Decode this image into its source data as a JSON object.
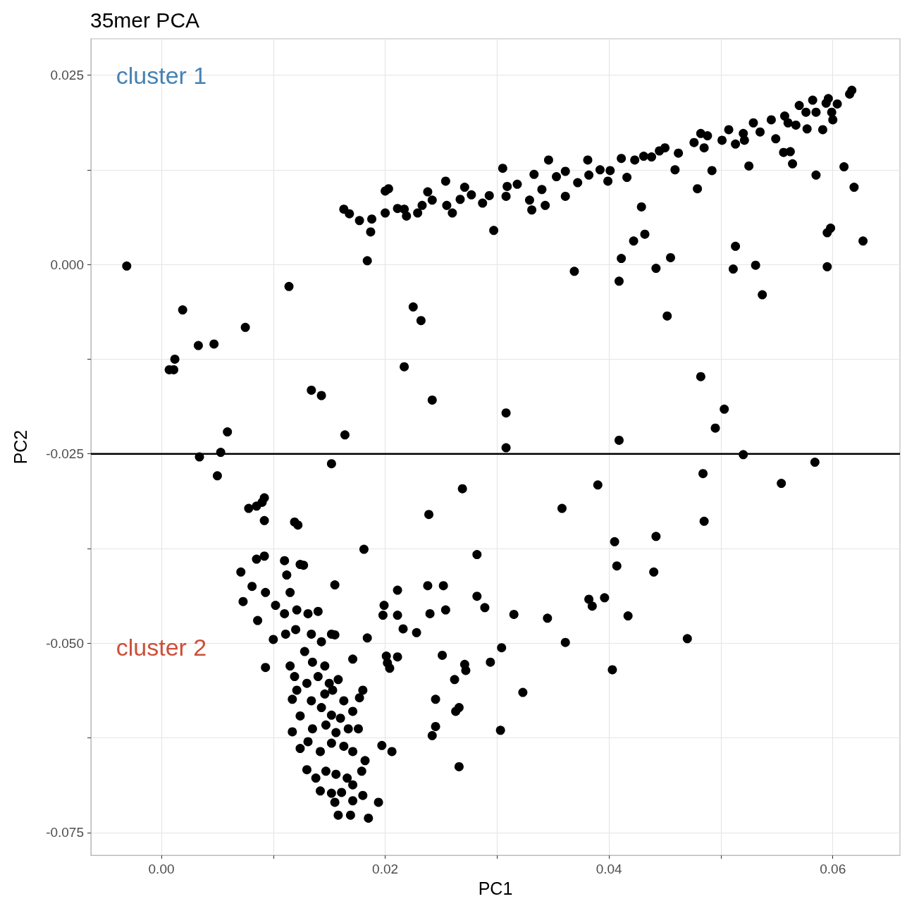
{
  "chart_data": {
    "type": "scatter",
    "title": "35mer PCA",
    "xlabel": "PC1",
    "ylabel": "PC2",
    "annotations": [
      "cluster 1",
      "cluster 2"
    ],
    "xlim": [
      -0.0063,
      0.066
    ],
    "ylim": [
      -0.078,
      0.0298
    ],
    "xticks": [
      {
        "value": 0,
        "label": "0.00"
      },
      {
        "value": 0.01,
        "label": null
      },
      0.02,
      {
        "value": 0.03,
        "label": null
      },
      0.04,
      {
        "value": 0.05,
        "label": null
      },
      0.06
    ],
    "yticks": [
      {
        "value": -0.075,
        "label": "-0.075"
      },
      {
        "value": -0.0625,
        "label": null
      },
      {
        "value": -0.05,
        "label": "-0.050"
      },
      {
        "value": -0.0375,
        "label": null
      },
      {
        "value": -0.025,
        "label": "-0.025"
      },
      {
        "value": -0.0125,
        "label": null
      },
      {
        "value": 0,
        "label": "0.000"
      },
      {
        "value": 0.0125,
        "label": null
      },
      {
        "value": 0.025,
        "label": "0.025"
      }
    ],
    "grid": true,
    "marker": "circle",
    "ref_lines": [
      {
        "axis": "y",
        "value": -0.025,
        "color": "#000000"
      }
    ],
    "series": [
      {
        "color": "#000000",
        "x": [
          -0.0031,
          0.0019,
          0.0012,
          0.0007,
          0.0011,
          0.0033,
          0.0047,
          0.0075,
          0.0114,
          0.0059,
          0.0053,
          0.0034,
          0.005,
          0.0134,
          0.0143,
          0.0164,
          0.0152,
          0.0184,
          0.0225,
          0.0232,
          0.0217,
          0.0242,
          0.0308,
          0.0308,
          0.0269,
          0.0239,
          0.0282,
          0.0358,
          0.039,
          0.0405,
          0.0407,
          0.0442,
          0.044,
          0.0485,
          0.0484,
          0.052,
          0.0554,
          0.0584,
          0.0495,
          0.0503,
          0.0482,
          0.0409,
          0.0452,
          0.0409,
          0.0411,
          0.0369,
          0.0422,
          0.0432,
          0.0429,
          0.0442,
          0.0455,
          0.0511,
          0.0513,
          0.0531,
          0.0537,
          0.0595,
          0.0595,
          0.0598,
          0.0627,
          0.0619,
          0.061,
          0.0585,
          0.0479,
          0.0492,
          0.0525,
          0.0564,
          0.0556,
          0.0562,
          0.0297,
          0.0343,
          0.0331,
          0.0163,
          0.0168,
          0.0177,
          0.0188,
          0.0187,
          0.02,
          0.02,
          0.0203,
          0.0211,
          0.0217,
          0.0219,
          0.0229,
          0.0233,
          0.0238,
          0.0242,
          0.0254,
          0.0255,
          0.026,
          0.0267,
          0.0271,
          0.0277,
          0.0287,
          0.0293,
          0.0305,
          0.0308,
          0.0309,
          0.0318,
          0.0329,
          0.0333,
          0.034,
          0.0346,
          0.0353,
          0.0361,
          0.0361,
          0.0372,
          0.0381,
          0.0382,
          0.0392,
          0.0399,
          0.0401,
          0.0411,
          0.0416,
          0.0423,
          0.0431,
          0.0438,
          0.045,
          0.0459,
          0.0462,
          0.0476,
          0.0485,
          0.0488,
          0.0501,
          0.0507,
          0.0513,
          0.052,
          0.0529,
          0.0535,
          0.0545,
          0.0549,
          0.0557,
          0.0567,
          0.057,
          0.0577,
          0.0582,
          0.0585,
          0.0591,
          0.0596,
          0.0599,
          0.06,
          0.0604,
          0.0615,
          0.0617,
          0.0594,
          0.0576,
          0.056,
          0.0521,
          0.0482,
          0.0445,
          0.0092,
          0.009,
          0.0078,
          0.0085,
          0.0092,
          0.0119,
          0.0122,
          0.0181,
          0.0085,
          0.0092,
          0.0071,
          0.0081,
          0.0093,
          0.0073,
          0.0086,
          0.0093,
          0.011,
          0.0112,
          0.0115,
          0.0124,
          0.0127,
          0.0102,
          0.011,
          0.0121,
          0.0131,
          0.014,
          0.01,
          0.0111,
          0.012,
          0.0134,
          0.0143,
          0.0128,
          0.0135,
          0.0146,
          0.0115,
          0.0119,
          0.013,
          0.014,
          0.015,
          0.0158,
          0.0121,
          0.0134,
          0.0146,
          0.0153,
          0.0163,
          0.0117,
          0.0143,
          0.0152,
          0.016,
          0.0171,
          0.0124,
          0.0135,
          0.0147,
          0.0156,
          0.0167,
          0.0176,
          0.0117,
          0.0131,
          0.0142,
          0.0152,
          0.0163,
          0.0171,
          0.0182,
          0.0124,
          0.013,
          0.0138,
          0.0147,
          0.0156,
          0.0166,
          0.0179,
          0.0142,
          0.0152,
          0.0161,
          0.0171,
          0.0155,
          0.0171,
          0.018,
          0.0194,
          0.0158,
          0.0169,
          0.0185,
          0.0155,
          0.0152,
          0.0171,
          0.0155,
          0.0184,
          0.018,
          0.0177,
          0.0199,
          0.0198,
          0.0211,
          0.0211,
          0.0216,
          0.0228,
          0.0201,
          0.0202,
          0.0204,
          0.0211,
          0.0197,
          0.0206,
          0.0238,
          0.0252,
          0.024,
          0.0254,
          0.0251,
          0.0271,
          0.0272,
          0.0262,
          0.0245,
          0.0245,
          0.0242,
          0.0266,
          0.0263,
          0.0266,
          0.0282,
          0.0289,
          0.0315,
          0.0304,
          0.0294,
          0.0323,
          0.0303,
          0.0345,
          0.0361,
          0.0382,
          0.0385,
          0.0396,
          0.0417,
          0.0403,
          0.047
        ],
        "values": [
          -0.0002,
          -0.006,
          -0.0125,
          -0.0139,
          -0.0139,
          -0.0107,
          -0.0105,
          -0.0083,
          -0.0029,
          -0.0221,
          -0.0248,
          -0.0254,
          -0.0279,
          -0.0166,
          -0.0173,
          -0.0225,
          -0.0263,
          0.0005,
          -0.0056,
          -0.0074,
          -0.0135,
          -0.0179,
          -0.0196,
          -0.0242,
          -0.0296,
          -0.033,
          -0.0383,
          -0.0322,
          -0.0291,
          -0.0366,
          -0.0398,
          -0.0359,
          -0.0406,
          -0.0339,
          -0.0276,
          -0.0251,
          -0.0289,
          -0.0261,
          -0.0216,
          -0.0191,
          -0.0148,
          -0.0232,
          -0.0068,
          -0.0022,
          0.0008,
          -0.0009,
          0.0031,
          0.004,
          0.0076,
          -0.0005,
          0.0009,
          -0.0006,
          0.0024,
          -0.0001,
          -0.004,
          -0.0003,
          0.0042,
          0.0048,
          0.0031,
          0.0102,
          0.0129,
          0.0118,
          0.01,
          0.0124,
          0.013,
          0.0133,
          0.0148,
          0.0149,
          0.0045,
          0.0078,
          0.0072,
          0.0073,
          0.0067,
          0.0058,
          0.006,
          0.0043,
          0.0068,
          0.0097,
          0.01,
          0.0074,
          0.0073,
          0.0064,
          0.0068,
          0.0078,
          0.0096,
          0.0085,
          0.011,
          0.0078,
          0.0068,
          0.0086,
          0.0102,
          0.0092,
          0.0081,
          0.0091,
          0.0127,
          0.009,
          0.0103,
          0.0106,
          0.0085,
          0.0119,
          0.0099,
          0.0138,
          0.0116,
          0.0123,
          0.009,
          0.0108,
          0.0138,
          0.0118,
          0.0125,
          0.011,
          0.0124,
          0.014,
          0.0115,
          0.0138,
          0.0143,
          0.0142,
          0.0154,
          0.0125,
          0.0147,
          0.0161,
          0.0154,
          0.017,
          0.0164,
          0.0178,
          0.0159,
          0.0173,
          0.0187,
          0.0175,
          0.0191,
          0.0166,
          0.0196,
          0.0184,
          0.021,
          0.0179,
          0.0217,
          0.0201,
          0.0178,
          0.0219,
          0.0201,
          0.0191,
          0.0212,
          0.0225,
          0.023,
          0.0213,
          0.0201,
          0.0187,
          0.0164,
          0.0173,
          0.015,
          -0.0308,
          -0.0314,
          -0.0322,
          -0.0319,
          -0.0338,
          -0.034,
          -0.0344,
          -0.0376,
          -0.0389,
          -0.0385,
          -0.0406,
          -0.0425,
          -0.0433,
          -0.0445,
          -0.047,
          -0.0532,
          -0.0391,
          -0.041,
          -0.0433,
          -0.0396,
          -0.0397,
          -0.045,
          -0.0461,
          -0.0456,
          -0.0461,
          -0.0458,
          -0.0495,
          -0.0488,
          -0.0482,
          -0.0488,
          -0.0498,
          -0.0511,
          -0.0525,
          -0.053,
          -0.053,
          -0.0544,
          -0.0553,
          -0.0544,
          -0.0553,
          -0.0548,
          -0.0562,
          -0.0576,
          -0.0567,
          -0.0562,
          -0.0576,
          -0.0574,
          -0.0585,
          -0.0595,
          -0.0599,
          -0.059,
          -0.0596,
          -0.0613,
          -0.0608,
          -0.0618,
          -0.0613,
          -0.0613,
          -0.0617,
          -0.063,
          -0.0643,
          -0.0632,
          -0.0636,
          -0.0643,
          -0.0655,
          -0.0639,
          -0.0667,
          -0.0678,
          -0.0669,
          -0.0673,
          -0.0678,
          -0.0669,
          -0.0695,
          -0.0698,
          -0.0697,
          -0.0687,
          -0.071,
          -0.0708,
          -0.0701,
          -0.071,
          -0.0727,
          -0.0727,
          -0.0731,
          -0.0489,
          -0.0488,
          -0.0521,
          -0.0423,
          -0.0493,
          -0.0562,
          -0.0572,
          -0.045,
          -0.0463,
          -0.043,
          -0.0463,
          -0.0481,
          -0.0486,
          -0.0517,
          -0.0526,
          -0.0533,
          -0.0518,
          -0.0635,
          -0.0643,
          -0.0424,
          -0.0424,
          -0.0461,
          -0.0456,
          -0.0516,
          -0.0528,
          -0.0536,
          -0.0548,
          -0.0574,
          -0.061,
          -0.0622,
          -0.0585,
          -0.059,
          -0.0663,
          -0.0438,
          -0.0453,
          -0.0462,
          -0.0506,
          -0.0525,
          -0.0565,
          -0.0615,
          -0.0467,
          -0.0499,
          -0.0442,
          -0.0451,
          -0.044,
          -0.0464,
          -0.0535,
          -0.0494
        ]
      }
    ]
  }
}
